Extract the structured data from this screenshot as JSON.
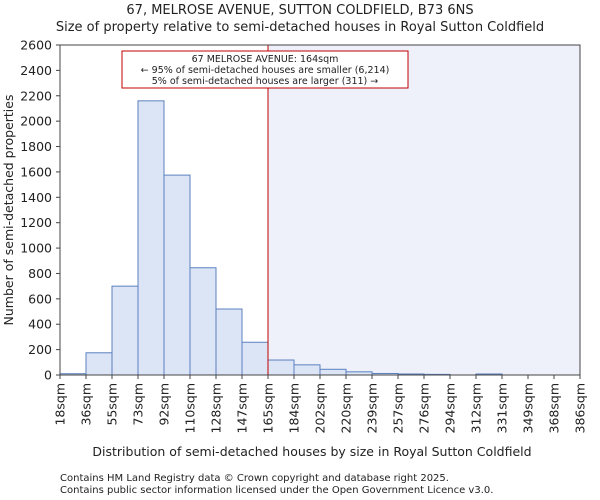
{
  "chart_data": {
    "type": "bar",
    "title": "67, MELROSE AVENUE, SUTTON COLDFIELD, B73 6NS",
    "subtitle": "Size of property relative to semi-detached houses in Royal Sutton Coldfield",
    "xlabel": "Distribution of semi-detached houses by size in Royal Sutton Coldfield",
    "ylabel": "Number of semi-detached properties",
    "categories": [
      "18sqm",
      "36sqm",
      "55sqm",
      "73sqm",
      "92sqm",
      "110sqm",
      "128sqm",
      "147sqm",
      "165sqm",
      "184sqm",
      "202sqm",
      "220sqm",
      "239sqm",
      "257sqm",
      "276sqm",
      "294sqm",
      "312sqm",
      "331sqm",
      "349sqm",
      "368sqm",
      "386sqm"
    ],
    "values": [
      10,
      175,
      700,
      2160,
      1575,
      845,
      520,
      258,
      118,
      80,
      45,
      25,
      12,
      8,
      5,
      0,
      8,
      0,
      0,
      0,
      0
    ],
    "ylim": [
      0,
      2600
    ],
    "yticks": [
      0,
      200,
      400,
      600,
      800,
      1000,
      1200,
      1400,
      1600,
      1800,
      2000,
      2200,
      2400,
      2600
    ],
    "marker": {
      "value_sqm": 164,
      "bin_position": 8
    },
    "annotation": {
      "line1": "67 MELROSE AVENUE: 164sqm",
      "line2": "← 95% of semi-detached houses are smaller (6,214)",
      "line3": "5% of semi-detached houses are larger (311) →"
    },
    "colors": {
      "bar_fill": "#dce5f5",
      "bar_edge": "#5b80c0",
      "highlight_bg": "#eef1fa",
      "marker": "#c00000"
    }
  },
  "footer": {
    "line1": "Contains HM Land Registry data © Crown copyright and database right 2025.",
    "line2": "Contains public sector information licensed under the Open Government Licence v3.0."
  }
}
